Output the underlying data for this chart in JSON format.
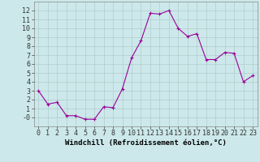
{
  "hours": [
    0,
    1,
    2,
    3,
    4,
    5,
    6,
    7,
    8,
    9,
    10,
    11,
    12,
    13,
    14,
    15,
    16,
    17,
    18,
    19,
    20,
    21,
    22,
    23
  ],
  "windchill": [
    3.0,
    1.5,
    1.7,
    0.2,
    0.2,
    -0.2,
    -0.2,
    1.2,
    1.1,
    3.2,
    6.7,
    8.6,
    11.7,
    11.6,
    12.0,
    10.0,
    9.1,
    9.4,
    6.5,
    6.5,
    7.3,
    7.2,
    4.0,
    4.7
  ],
  "line_color": "#990099",
  "marker": "+",
  "markersize": 3,
  "linewidth": 0.8,
  "markeredgewidth": 0.8,
  "xlabel": "Windchill (Refroidissement éolien,°C)",
  "xlabel_fontsize": 6.5,
  "xlim": [
    -0.5,
    23.5
  ],
  "ylim": [
    -1,
    13
  ],
  "yticks": [
    0,
    1,
    2,
    3,
    4,
    5,
    6,
    7,
    8,
    9,
    10,
    11,
    12
  ],
  "xticks": [
    0,
    1,
    2,
    3,
    4,
    5,
    6,
    7,
    8,
    9,
    10,
    11,
    12,
    13,
    14,
    15,
    16,
    17,
    18,
    19,
    20,
    21,
    22,
    23
  ],
  "bg_color": "#cce8ea",
  "grid_color": "#b0cccc",
  "tick_fontsize": 6,
  "fig_bg": "#cce8ea",
  "spine_color": "#888888"
}
